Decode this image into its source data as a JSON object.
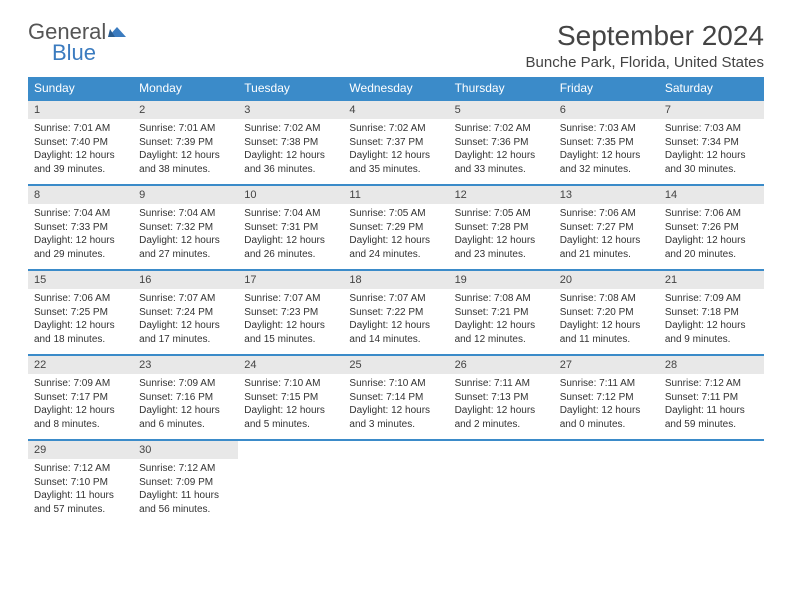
{
  "logo": {
    "text_top": "General",
    "text_bottom": "Blue"
  },
  "title": "September 2024",
  "location": "Bunche Park, Florida, United States",
  "colors": {
    "header_bg": "#3b8bc9",
    "header_text": "#ffffff",
    "daynum_bg": "#e8e8e8",
    "row_border": "#3b8bc9",
    "logo_blue": "#3b7bbf"
  },
  "weekdays": [
    "Sunday",
    "Monday",
    "Tuesday",
    "Wednesday",
    "Thursday",
    "Friday",
    "Saturday"
  ],
  "weeks": [
    [
      {
        "day": "1",
        "sunrise": "7:01 AM",
        "sunset": "7:40 PM",
        "daylight": "12 hours and 39 minutes."
      },
      {
        "day": "2",
        "sunrise": "7:01 AM",
        "sunset": "7:39 PM",
        "daylight": "12 hours and 38 minutes."
      },
      {
        "day": "3",
        "sunrise": "7:02 AM",
        "sunset": "7:38 PM",
        "daylight": "12 hours and 36 minutes."
      },
      {
        "day": "4",
        "sunrise": "7:02 AM",
        "sunset": "7:37 PM",
        "daylight": "12 hours and 35 minutes."
      },
      {
        "day": "5",
        "sunrise": "7:02 AM",
        "sunset": "7:36 PM",
        "daylight": "12 hours and 33 minutes."
      },
      {
        "day": "6",
        "sunrise": "7:03 AM",
        "sunset": "7:35 PM",
        "daylight": "12 hours and 32 minutes."
      },
      {
        "day": "7",
        "sunrise": "7:03 AM",
        "sunset": "7:34 PM",
        "daylight": "12 hours and 30 minutes."
      }
    ],
    [
      {
        "day": "8",
        "sunrise": "7:04 AM",
        "sunset": "7:33 PM",
        "daylight": "12 hours and 29 minutes."
      },
      {
        "day": "9",
        "sunrise": "7:04 AM",
        "sunset": "7:32 PM",
        "daylight": "12 hours and 27 minutes."
      },
      {
        "day": "10",
        "sunrise": "7:04 AM",
        "sunset": "7:31 PM",
        "daylight": "12 hours and 26 minutes."
      },
      {
        "day": "11",
        "sunrise": "7:05 AM",
        "sunset": "7:29 PM",
        "daylight": "12 hours and 24 minutes."
      },
      {
        "day": "12",
        "sunrise": "7:05 AM",
        "sunset": "7:28 PM",
        "daylight": "12 hours and 23 minutes."
      },
      {
        "day": "13",
        "sunrise": "7:06 AM",
        "sunset": "7:27 PM",
        "daylight": "12 hours and 21 minutes."
      },
      {
        "day": "14",
        "sunrise": "7:06 AM",
        "sunset": "7:26 PM",
        "daylight": "12 hours and 20 minutes."
      }
    ],
    [
      {
        "day": "15",
        "sunrise": "7:06 AM",
        "sunset": "7:25 PM",
        "daylight": "12 hours and 18 minutes."
      },
      {
        "day": "16",
        "sunrise": "7:07 AM",
        "sunset": "7:24 PM",
        "daylight": "12 hours and 17 minutes."
      },
      {
        "day": "17",
        "sunrise": "7:07 AM",
        "sunset": "7:23 PM",
        "daylight": "12 hours and 15 minutes."
      },
      {
        "day": "18",
        "sunrise": "7:07 AM",
        "sunset": "7:22 PM",
        "daylight": "12 hours and 14 minutes."
      },
      {
        "day": "19",
        "sunrise": "7:08 AM",
        "sunset": "7:21 PM",
        "daylight": "12 hours and 12 minutes."
      },
      {
        "day": "20",
        "sunrise": "7:08 AM",
        "sunset": "7:20 PM",
        "daylight": "12 hours and 11 minutes."
      },
      {
        "day": "21",
        "sunrise": "7:09 AM",
        "sunset": "7:18 PM",
        "daylight": "12 hours and 9 minutes."
      }
    ],
    [
      {
        "day": "22",
        "sunrise": "7:09 AM",
        "sunset": "7:17 PM",
        "daylight": "12 hours and 8 minutes."
      },
      {
        "day": "23",
        "sunrise": "7:09 AM",
        "sunset": "7:16 PM",
        "daylight": "12 hours and 6 minutes."
      },
      {
        "day": "24",
        "sunrise": "7:10 AM",
        "sunset": "7:15 PM",
        "daylight": "12 hours and 5 minutes."
      },
      {
        "day": "25",
        "sunrise": "7:10 AM",
        "sunset": "7:14 PM",
        "daylight": "12 hours and 3 minutes."
      },
      {
        "day": "26",
        "sunrise": "7:11 AM",
        "sunset": "7:13 PM",
        "daylight": "12 hours and 2 minutes."
      },
      {
        "day": "27",
        "sunrise": "7:11 AM",
        "sunset": "7:12 PM",
        "daylight": "12 hours and 0 minutes."
      },
      {
        "day": "28",
        "sunrise": "7:12 AM",
        "sunset": "7:11 PM",
        "daylight": "11 hours and 59 minutes."
      }
    ],
    [
      {
        "day": "29",
        "sunrise": "7:12 AM",
        "sunset": "7:10 PM",
        "daylight": "11 hours and 57 minutes."
      },
      {
        "day": "30",
        "sunrise": "7:12 AM",
        "sunset": "7:09 PM",
        "daylight": "11 hours and 56 minutes."
      },
      null,
      null,
      null,
      null,
      null
    ]
  ],
  "labels": {
    "sunrise": "Sunrise: ",
    "sunset": "Sunset: ",
    "daylight": "Daylight: "
  }
}
